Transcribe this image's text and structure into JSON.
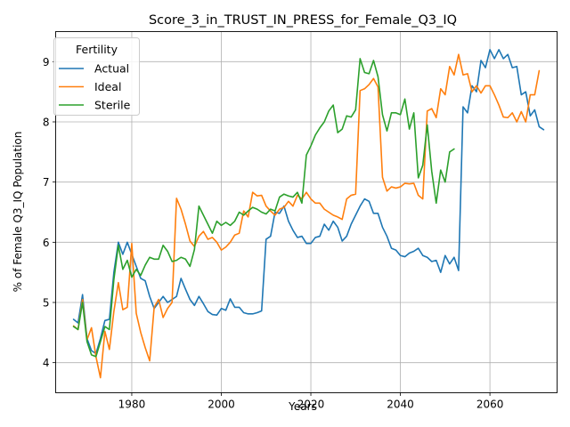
{
  "chart_data": {
    "type": "line",
    "title": "Score_3_in_TRUST_IN_PRESS_for_Female_Q3_IQ",
    "xlabel": "Years",
    "ylabel": "% of Female Q3_IQ Population",
    "xlim": [
      1963,
      2075
    ],
    "ylim": [
      3.5,
      9.5
    ],
    "xticks": [
      1980,
      2000,
      2020,
      2040,
      2060
    ],
    "yticks": [
      4,
      5,
      6,
      7,
      8,
      9
    ],
    "grid": true,
    "legend": {
      "title": "Fertility",
      "placement": "top-left"
    },
    "x_start": 1967,
    "series": [
      {
        "name": "Actual",
        "color": "#1f77b4",
        "values": [
          4.72,
          4.66,
          5.13,
          4.4,
          4.2,
          4.15,
          4.4,
          4.7,
          4.72,
          5.5,
          6.0,
          5.8,
          6.0,
          5.8,
          5.6,
          5.4,
          5.36,
          5.1,
          4.9,
          5.0,
          5.1,
          5.0,
          5.05,
          5.1,
          5.4,
          5.22,
          5.05,
          4.95,
          5.1,
          4.98,
          4.85,
          4.8,
          4.79,
          4.9,
          4.87,
          5.06,
          4.92,
          4.92,
          4.83,
          4.81,
          4.81,
          4.83,
          4.86,
          6.05,
          6.1,
          6.5,
          6.48,
          6.6,
          6.35,
          6.2,
          6.08,
          6.1,
          5.98,
          5.98,
          6.08,
          6.1,
          6.3,
          6.2,
          6.35,
          6.25,
          6.02,
          6.1,
          6.3,
          6.45,
          6.6,
          6.72,
          6.68,
          6.48,
          6.48,
          6.25,
          6.1,
          5.9,
          5.87,
          5.78,
          5.76,
          5.82,
          5.85,
          5.9,
          5.78,
          5.75,
          5.68,
          5.7,
          5.5,
          5.78,
          5.64,
          5.75,
          5.53,
          8.25,
          8.15,
          8.6,
          8.5,
          9.02,
          8.9,
          9.2,
          9.05,
          9.2,
          9.05,
          9.12,
          8.9,
          8.92,
          8.45,
          8.5,
          8.1,
          8.2,
          7.92,
          7.87
        ]
      },
      {
        "name": "Ideal",
        "color": "#ff7f0e",
        "values": [
          4.61,
          4.55,
          5.05,
          4.38,
          4.58,
          4.1,
          3.75,
          4.52,
          4.22,
          4.85,
          5.33,
          4.88,
          4.92,
          5.98,
          4.82,
          4.5,
          4.25,
          4.03,
          4.92,
          5.05,
          4.75,
          4.9,
          5.0,
          6.73,
          6.55,
          6.3,
          6.02,
          5.93,
          6.1,
          6.18,
          6.05,
          6.08,
          6.0,
          5.87,
          5.92,
          6.0,
          6.12,
          6.15,
          6.52,
          6.42,
          6.83,
          6.77,
          6.78,
          6.6,
          6.52,
          6.45,
          6.55,
          6.58,
          6.68,
          6.6,
          6.78,
          6.72,
          6.83,
          6.72,
          6.65,
          6.65,
          6.55,
          6.5,
          6.45,
          6.42,
          6.38,
          6.72,
          6.78,
          6.8,
          8.52,
          8.55,
          8.62,
          8.72,
          8.58,
          7.08,
          6.85,
          6.92,
          6.9,
          6.92,
          6.98,
          6.97,
          6.98,
          6.78,
          6.72,
          8.18,
          8.22,
          8.07,
          8.55,
          8.45,
          8.92,
          8.78,
          9.12,
          8.78,
          8.8,
          8.5,
          8.6,
          8.48,
          8.6,
          8.6,
          8.45,
          8.28,
          8.08,
          8.07,
          8.15,
          8.0,
          8.17,
          8.0,
          8.45,
          8.45,
          8.85
        ]
      },
      {
        "name": "Sterile",
        "color": "#2ca02c",
        "values": [
          4.6,
          4.55,
          5.0,
          4.35,
          4.13,
          4.1,
          4.35,
          4.6,
          4.55,
          5.38,
          5.95,
          5.55,
          5.7,
          5.42,
          5.55,
          5.45,
          5.62,
          5.75,
          5.72,
          5.72,
          5.95,
          5.85,
          5.68,
          5.7,
          5.75,
          5.72,
          5.6,
          5.88,
          6.6,
          6.45,
          6.3,
          6.15,
          6.35,
          6.28,
          6.33,
          6.28,
          6.35,
          6.5,
          6.45,
          6.52,
          6.58,
          6.55,
          6.5,
          6.47,
          6.55,
          6.52,
          6.75,
          6.8,
          6.77,
          6.75,
          6.83,
          6.65,
          7.45,
          7.6,
          7.78,
          7.9,
          8.0,
          8.18,
          8.28,
          7.82,
          7.88,
          8.1,
          8.08,
          8.2,
          9.05,
          8.82,
          8.8,
          9.02,
          8.75,
          8.12,
          7.85,
          8.15,
          8.15,
          8.12,
          8.38,
          7.88,
          8.15,
          7.07,
          7.28,
          7.95,
          7.18,
          6.65,
          7.2,
          7.0,
          7.5,
          7.55
        ]
      }
    ]
  }
}
